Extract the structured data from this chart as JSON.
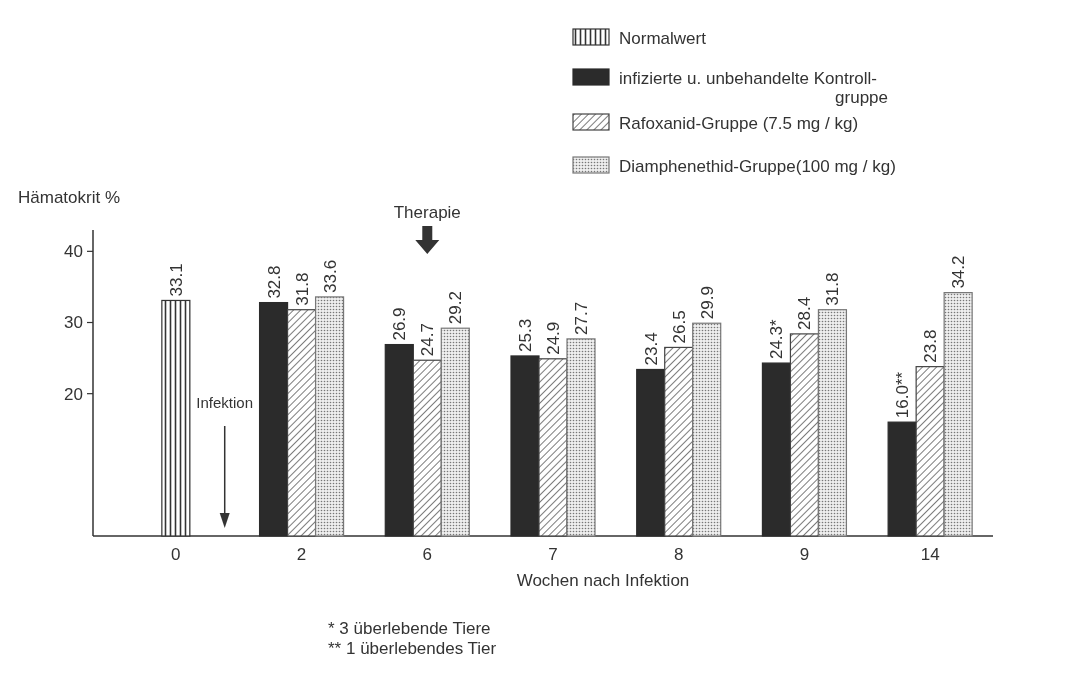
{
  "chart_data": {
    "type": "bar",
    "ylabel": "Hämatokrit %",
    "xlabel": "Wochen nach Infektion",
    "categories": [
      "0",
      "2",
      "6",
      "7",
      "8",
      "9",
      "14"
    ],
    "series": [
      {
        "name": "Normalwert",
        "color": "#333333",
        "values": [
          33.1,
          null,
          null,
          null,
          null,
          null,
          null
        ],
        "value_labels": [
          "33.1",
          null,
          null,
          null,
          null,
          null,
          null
        ]
      },
      {
        "name": "infizierte u. unbehandelte Kontroll-\ngruppe",
        "color": "#2b2b2b",
        "values": [
          null,
          32.8,
          26.9,
          25.3,
          23.4,
          24.3,
          16.0
        ],
        "value_labels": [
          null,
          "32.8",
          "26.9",
          "25.3",
          "23.4",
          "24.3*",
          "16.0**"
        ]
      },
      {
        "name": "Rafoxanid-Gruppe (7.5 mg / kg)",
        "color": "#444444",
        "values": [
          null,
          31.8,
          24.7,
          24.9,
          26.5,
          28.4,
          23.8
        ],
        "value_labels": [
          null,
          "31.8",
          "24.7",
          "24.9",
          "26.5",
          "28.4",
          "23.8"
        ]
      },
      {
        "name": "Diamphenethid-Gruppe(100 mg / kg)",
        "color": "#777777",
        "values": [
          null,
          33.6,
          29.2,
          27.7,
          29.9,
          31.8,
          34.2
        ],
        "value_labels": [
          null,
          "33.6",
          "29.2",
          "27.7",
          "29.9",
          "31.8",
          "34.2"
        ]
      }
    ],
    "ylim": [
      0,
      43
    ],
    "yticks": [
      20,
      30,
      40
    ],
    "grid": false,
    "legend": "top right",
    "annotations": [
      "Infektion",
      "Therapie",
      "* 3 überlebende Tiere",
      "** 1 überlebendes Tier"
    ]
  }
}
